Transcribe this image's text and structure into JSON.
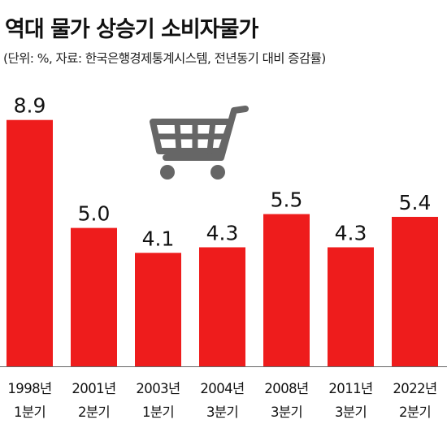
{
  "header": {
    "title": "역대 물가 상승기 소비자물가",
    "subtitle": "(단위: %, 자료: 한국은행경제통계시스템, 전년동기 대비 증감률)"
  },
  "icons": {
    "cart": "shopping-cart-icon"
  },
  "colors": {
    "bar": "#ee1c1c",
    "text": "#111111",
    "cart": "#666666",
    "baseline": "#666666"
  },
  "chart_data": {
    "type": "bar",
    "categories": [
      [
        "1998년",
        "1분기"
      ],
      [
        "2001년",
        "2분기"
      ],
      [
        "2003년",
        "1분기"
      ],
      [
        "2004년",
        "3분기"
      ],
      [
        "2008년",
        "3분기"
      ],
      [
        "2011년",
        "3분기"
      ],
      [
        "2022년",
        "2분기"
      ]
    ],
    "values": [
      8.9,
      5.0,
      4.1,
      4.3,
      5.5,
      4.3,
      5.4
    ],
    "value_labels": [
      "8.9",
      "5.0",
      "4.1",
      "4.3",
      "5.5",
      "4.3",
      "5.4"
    ],
    "ylim": [
      0,
      10.3
    ],
    "grid": false,
    "legend": "none"
  }
}
